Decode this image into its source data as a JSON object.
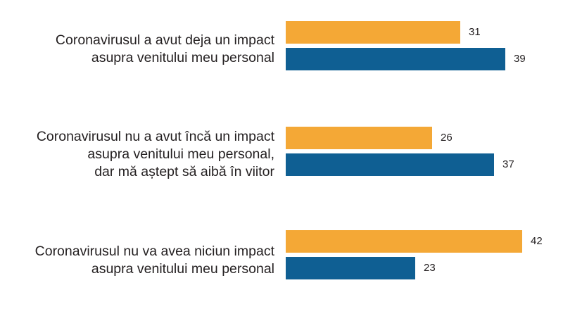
{
  "chart_data": {
    "type": "bar",
    "orientation": "horizontal",
    "title": "",
    "xlabel": "",
    "ylabel": "",
    "xlim": [
      0,
      42
    ],
    "grid": false,
    "legend": "none",
    "categories": [
      "Coronavirusul a avut deja un impact\nasupra venitului meu personal",
      "Coronavirusul nu a avut încă un impact\nasupra venitului meu personal,\ndar mă aștept să aibă în viitor",
      "Coronavirusul nu va avea niciun impact\nasupra venitului meu personal"
    ],
    "series": [
      {
        "name": "series-1",
        "color": "#f4a836",
        "values": [
          31,
          26,
          42
        ]
      },
      {
        "name": "series-2",
        "color": "#0f5f93",
        "values": [
          39,
          37,
          23
        ]
      }
    ]
  }
}
